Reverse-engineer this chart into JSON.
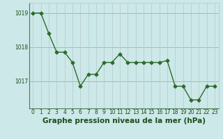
{
  "x": [
    0,
    1,
    2,
    3,
    4,
    5,
    6,
    7,
    8,
    9,
    10,
    11,
    12,
    13,
    14,
    15,
    16,
    17,
    18,
    19,
    20,
    21,
    22,
    23
  ],
  "y": [
    1019.0,
    1019.0,
    1018.4,
    1017.85,
    1017.85,
    1017.55,
    1016.85,
    1017.2,
    1017.2,
    1017.55,
    1017.55,
    1017.8,
    1017.55,
    1017.55,
    1017.55,
    1017.55,
    1017.55,
    1017.6,
    1016.85,
    1016.85,
    1016.45,
    1016.45,
    1016.85,
    1016.85
  ],
  "line_color": "#2d6b2d",
  "marker": "D",
  "marker_size": 2.5,
  "background_color": "#cce8e8",
  "grid_color_h": "#c8a0a0",
  "grid_color_v": "#b8c8c8",
  "tick_label_color": "#1a4d1a",
  "xlabel": "Graphe pression niveau de la mer (hPa)",
  "xlabel_color": "#1a4d1a",
  "xlabel_fontsize": 7.5,
  "ylim": [
    1016.2,
    1019.3
  ],
  "yticks": [
    1017,
    1018,
    1019
  ],
  "xticks": [
    0,
    1,
    2,
    3,
    4,
    5,
    6,
    7,
    8,
    9,
    10,
    11,
    12,
    13,
    14,
    15,
    16,
    17,
    18,
    19,
    20,
    21,
    22,
    23
  ],
  "tick_fontsize": 5.5,
  "linewidth": 1.0
}
